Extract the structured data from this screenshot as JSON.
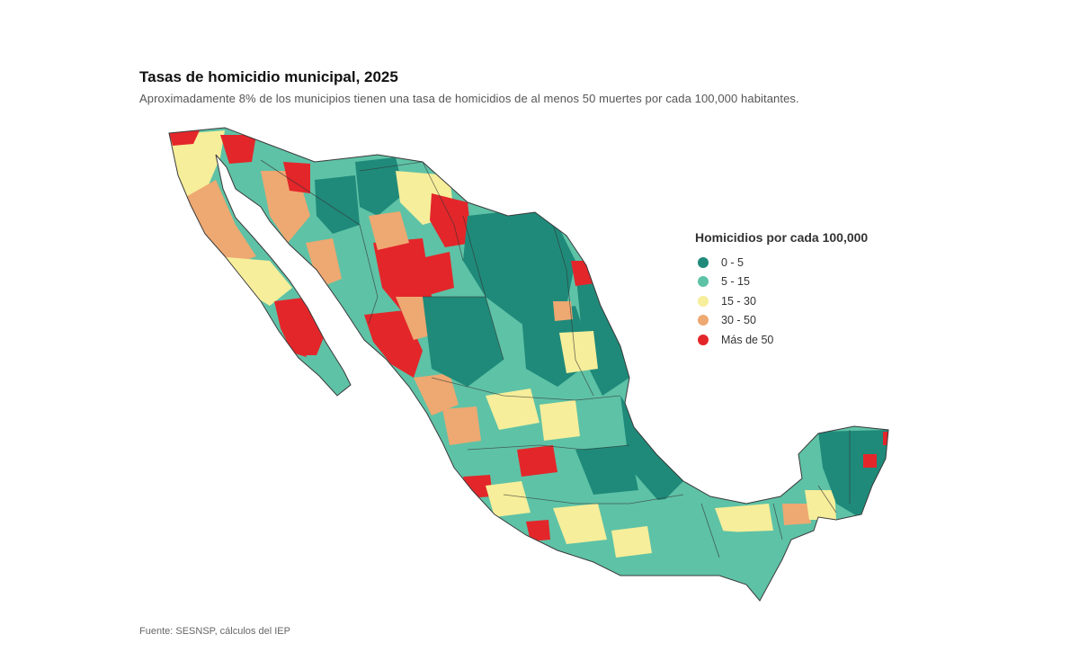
{
  "header": {
    "title": "Tasas de homicidio municipal, 2025",
    "subtitle": "Aproximadamente 8% de los municipios tienen una tasa de homicidios de al menos 50 muertes por cada 100,000 habitantes."
  },
  "legend": {
    "title": "Homicidios por cada 100,000",
    "items": [
      {
        "label": "0 - 5",
        "color": "#1f8a7a"
      },
      {
        "label": "5 - 15",
        "color": "#5ec2a6"
      },
      {
        "label": "15 - 30",
        "color": "#f6ee9a"
      },
      {
        "label": "30 - 50",
        "color": "#eea871"
      },
      {
        "label": "Más de 50",
        "color": "#e3262a"
      }
    ]
  },
  "footer": {
    "source": "Fuente: SESNSP, cálculos del IEP"
  },
  "colors": {
    "background": "#ffffff",
    "border": "#3a3a3a",
    "cat0": "#1f8a7a",
    "cat1": "#5ec2a6",
    "cat2": "#f6ee9a",
    "cat3": "#eea871",
    "cat4": "#e3262a"
  }
}
